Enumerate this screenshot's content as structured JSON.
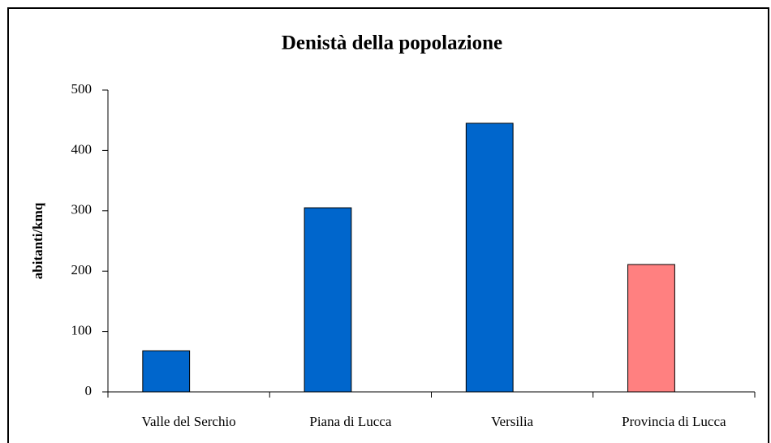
{
  "chart_data": {
    "type": "bar",
    "title": "Denistà della popolazione",
    "y_label": "abitanti/kmq",
    "categories": [
      "Valle del Serchio",
      "Piana di Lucca",
      "Versilia",
      "Provincia di Lucca"
    ],
    "values": [
      68,
      305,
      445,
      211
    ],
    "colors": [
      "#0066cc",
      "#0066cc",
      "#0066cc",
      "#ff8080"
    ],
    "ylim": [
      0,
      500
    ],
    "yticks": [
      0,
      100,
      200,
      300,
      400,
      500
    ],
    "grid": false
  }
}
